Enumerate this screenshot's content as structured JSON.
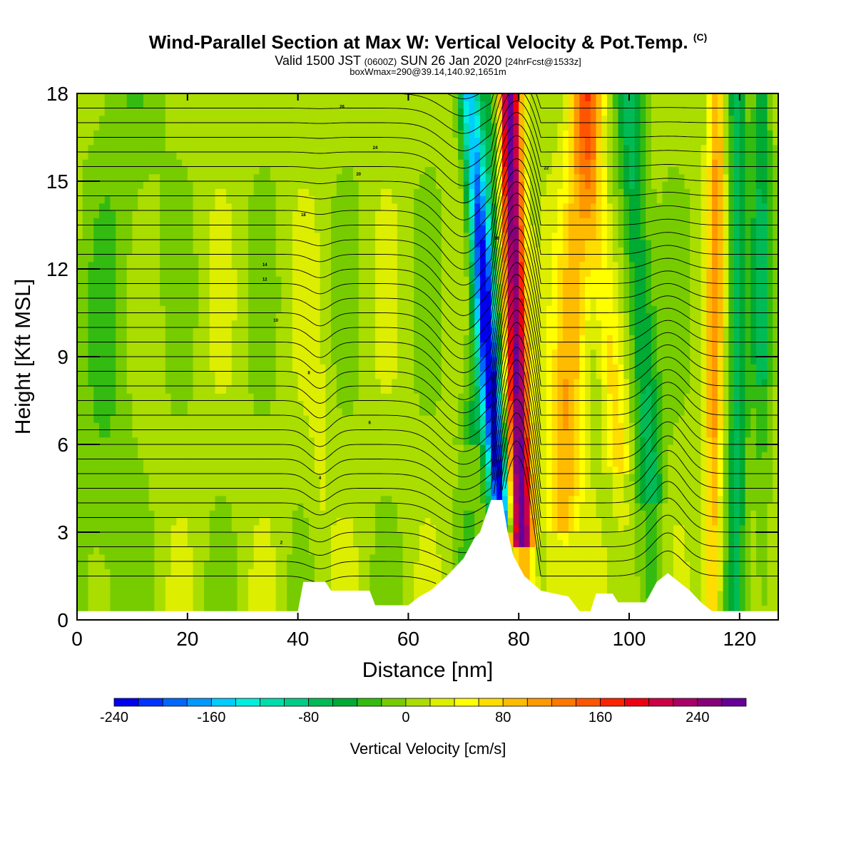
{
  "title": {
    "main": "Wind-Parallel Section at Max W: Vertical Velocity & Pot.Temp.",
    "copyright": "(C)",
    "valid_prefix": "Valid 1500 JST",
    "valid_utc": "(0600Z)",
    "valid_date": "SUN 26 Jan 2020",
    "forecast": "[24hrFcst@1533z]",
    "box_info": "boxWmax=290@39.14,140.92,1651m"
  },
  "chart_data": {
    "type": "heatmap",
    "xlabel": "Distance [nm]",
    "ylabel": "Height [Kft MSL]",
    "xlim": [
      0,
      127
    ],
    "ylim": [
      0,
      18
    ],
    "x_ticks": [
      0,
      20,
      40,
      60,
      80,
      100,
      120
    ],
    "y_ticks": [
      0,
      3,
      6,
      9,
      12,
      15,
      18
    ],
    "colorbar": {
      "label": "Vertical Velocity [cm/s]",
      "min": -240,
      "max": 280,
      "step": 20,
      "tick_values": [
        -240,
        -160,
        -80,
        0,
        80,
        160,
        240
      ],
      "tick_labels": [
        "-240",
        "-160",
        "-80",
        "0",
        "80",
        "160",
        "240"
      ],
      "colors": [
        "#0000ee",
        "#0033ff",
        "#0066ff",
        "#0099ff",
        "#00ccff",
        "#00eedd",
        "#00ddaa",
        "#00cc88",
        "#00bb55",
        "#00aa33",
        "#33bb11",
        "#77cc00",
        "#aadd00",
        "#ddee00",
        "#ffff00",
        "#ffdd00",
        "#ffbb00",
        "#ff9900",
        "#ff7700",
        "#ff5500",
        "#ff2200",
        "#ee0011",
        "#cc0044",
        "#aa0066",
        "#880077",
        "#660099"
      ]
    },
    "terrain_kft": [
      [
        0,
        0.3
      ],
      [
        40,
        0.3
      ],
      [
        41,
        1.3
      ],
      [
        45,
        1.3
      ],
      [
        46,
        1.0
      ],
      [
        53,
        1.0
      ],
      [
        54,
        0.5
      ],
      [
        60,
        0.5
      ],
      [
        62,
        0.8
      ],
      [
        64,
        1.0
      ],
      [
        67,
        1.5
      ],
      [
        70,
        2.1
      ],
      [
        72,
        2.8
      ],
      [
        73,
        3.0
      ],
      [
        75,
        4.1
      ],
      [
        77,
        4.1
      ],
      [
        78,
        3.0
      ],
      [
        79,
        2.2
      ],
      [
        81,
        1.5
      ],
      [
        84,
        1.0
      ],
      [
        89,
        0.8
      ],
      [
        91,
        0.3
      ],
      [
        93,
        0.3
      ],
      [
        94,
        0.9
      ],
      [
        97,
        0.9
      ],
      [
        98,
        0.6
      ],
      [
        103,
        0.6
      ],
      [
        105,
        1.3
      ],
      [
        107,
        1.6
      ],
      [
        109,
        1.3
      ],
      [
        111,
        1.0
      ],
      [
        113,
        0.6
      ],
      [
        115,
        0.3
      ],
      [
        127,
        0.3
      ]
    ],
    "isentrope_labels": [
      "2",
      "4",
      "6",
      "8",
      "10",
      "12",
      "14",
      "16",
      "18",
      "20",
      "22",
      "24",
      "26"
    ]
  }
}
